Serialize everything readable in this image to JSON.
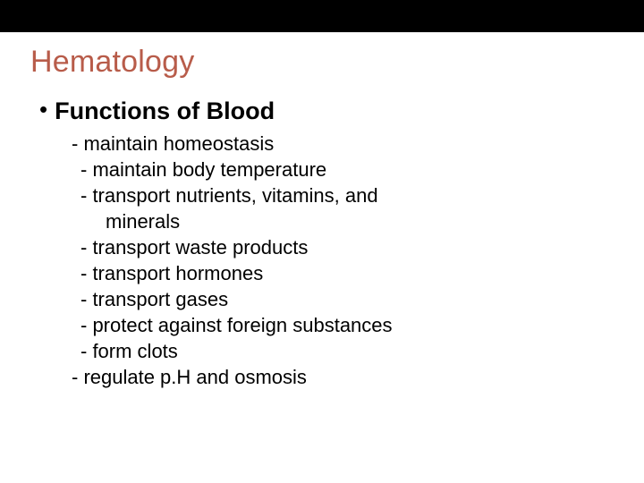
{
  "colors": {
    "topbar_background": "#000000",
    "page_background": "#ffffff",
    "title_color": "#b85c4a",
    "body_text_color": "#000000"
  },
  "typography": {
    "title_fontsize": 34,
    "subtitle_fontsize": 27,
    "body_fontsize": 22,
    "font_family": "Arial"
  },
  "title": "Hematology",
  "subtitle": "Functions of Blood",
  "bullet_glyph": "•",
  "items": [
    {
      "text": "- maintain homeostasis",
      "indent": "indent-1"
    },
    {
      "text": "- maintain body temperature",
      "indent": "indent-2"
    },
    {
      "text": "- transport nutrients, vitamins, and",
      "indent": "indent-2"
    },
    {
      "text": "minerals",
      "indent": "indent-cont"
    },
    {
      "text": "- transport waste products",
      "indent": "indent-2"
    },
    {
      "text": "- transport hormones",
      "indent": "indent-2"
    },
    {
      "text": "- transport gases",
      "indent": "indent-2"
    },
    {
      "text": "- protect against foreign substances",
      "indent": "indent-2"
    },
    {
      "text": "- form clots",
      "indent": "indent-2"
    },
    {
      "text": "- regulate p.H and osmosis",
      "indent": "indent-1"
    }
  ]
}
